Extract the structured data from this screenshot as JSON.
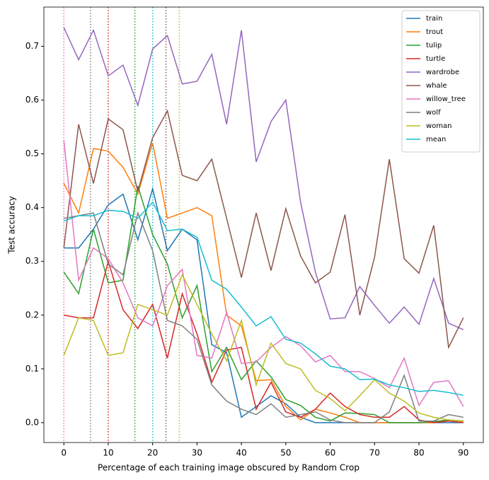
{
  "chart_data": {
    "type": "line",
    "xlabel": "Percentage of each training image obscured by Random Crop",
    "ylabel": "Test accuracy",
    "x": [
      0,
      3.33,
      6.67,
      10,
      13.33,
      16.67,
      20,
      23.33,
      26.67,
      30,
      33.33,
      36.67,
      40,
      43.33,
      46.67,
      50,
      53.33,
      56.67,
      60,
      63.33,
      66.67,
      70,
      73.33,
      76.67,
      80,
      83.33,
      86.67,
      90
    ],
    "xlim": [
      -4.5,
      94.5
    ],
    "xticks": [
      0,
      10,
      20,
      30,
      40,
      50,
      60,
      70,
      80,
      90
    ],
    "ylim": [
      -0.037,
      0.773
    ],
    "yticks": [
      {
        "value": 0,
        "label": "0.0"
      },
      0.1,
      0.2,
      0.3,
      0.4,
      0.5,
      0.6,
      0.7
    ],
    "legend": "upper right",
    "series": [
      {
        "name": "train",
        "color": "#1f77b4",
        "values": [
          0.325,
          0.325,
          0.36,
          0.405,
          0.425,
          0.34,
          0.435,
          0.32,
          0.36,
          0.34,
          0.145,
          0.13,
          0.01,
          0.03,
          0.05,
          0.035,
          0.01,
          0.0,
          0,
          0,
          0,
          0,
          0,
          0,
          0,
          0,
          0,
          0
        ]
      },
      {
        "name": "trout",
        "color": "#ff7f0e",
        "values": [
          0.445,
          0.39,
          0.51,
          0.505,
          0.475,
          0.425,
          0.52,
          0.38,
          0.39,
          0.4,
          0.385,
          0.2,
          0.18,
          0.078,
          0.08,
          0.03,
          0.005,
          0.025,
          0.018,
          0.01,
          0,
          0,
          0,
          0,
          0,
          0,
          0.005,
          0.002
        ]
      },
      {
        "name": "tulip",
        "color": "#2ca02c",
        "values": [
          0.28,
          0.24,
          0.36,
          0.26,
          0.265,
          0.44,
          0.35,
          0.295,
          0.195,
          0.255,
          0.095,
          0.14,
          0.08,
          0.115,
          0.085,
          0.043,
          0.032,
          0.01,
          0.003,
          0.018,
          0.017,
          0.015,
          0,
          0,
          0,
          0.002,
          0.005,
          0.003
        ]
      },
      {
        "name": "turtle",
        "color": "#d62728",
        "values": [
          0.2,
          0.195,
          0.195,
          0.3,
          0.21,
          0.175,
          0.22,
          0.12,
          0.24,
          0.165,
          0.075,
          0.135,
          0.14,
          0.025,
          0.075,
          0.02,
          0.01,
          0.025,
          0.055,
          0.03,
          0.015,
          0.01,
          0.01,
          0.03,
          0.005,
          0,
          0.003,
          0
        ]
      },
      {
        "name": "wardrobe",
        "color": "#9467bd",
        "values": [
          0.735,
          0.675,
          0.73,
          0.645,
          0.665,
          0.59,
          0.695,
          0.72,
          0.63,
          0.635,
          0.685,
          0.555,
          0.73,
          0.485,
          0.56,
          0.6,
          0.41,
          0.28,
          0.193,
          0.195,
          0.253,
          0.218,
          0.185,
          0.215,
          0.183,
          0.268,
          0.185,
          0.173
        ]
      },
      {
        "name": "whale",
        "color": "#8c564b",
        "values": [
          0.325,
          0.555,
          0.445,
          0.565,
          0.545,
          0.43,
          0.53,
          0.58,
          0.46,
          0.45,
          0.49,
          0.38,
          0.27,
          0.39,
          0.283,
          0.398,
          0.31,
          0.26,
          0.28,
          0.387,
          0.2,
          0.308,
          0.49,
          0.305,
          0.278,
          0.367,
          0.14,
          0.195
        ]
      },
      {
        "name": "willow_tree",
        "color": "#e377c2",
        "values": [
          0.525,
          0.265,
          0.325,
          0.305,
          0.26,
          0.195,
          0.18,
          0.255,
          0.285,
          0.125,
          0.12,
          0.205,
          0.11,
          0.113,
          0.14,
          0.16,
          0.143,
          0.113,
          0.125,
          0.095,
          0.095,
          0.082,
          0.065,
          0.12,
          0.032,
          0.075,
          0.078,
          0.03
        ]
      },
      {
        "name": "wolf",
        "color": "#7f7f7f",
        "values": [
          0.38,
          0.385,
          0.39,
          0.295,
          0.275,
          0.39,
          0.32,
          0.19,
          0.18,
          0.155,
          0.07,
          0.04,
          0.025,
          0.015,
          0.035,
          0.01,
          0.015,
          0.02,
          0.005,
          0,
          0,
          0,
          0.02,
          0.088,
          0.003,
          0.003,
          0.015,
          0.01
        ]
      },
      {
        "name": "woman",
        "color": "#bcbd22",
        "values": [
          0.125,
          0.195,
          0.19,
          0.125,
          0.13,
          0.22,
          0.21,
          0.2,
          0.275,
          0.22,
          0.165,
          0.115,
          0.19,
          0.07,
          0.148,
          0.11,
          0.1,
          0.06,
          0.045,
          0.022,
          0.05,
          0.08,
          0.055,
          0.04,
          0.018,
          0.01,
          0.005,
          0.003
        ]
      },
      {
        "name": "mean",
        "color": "#17becf",
        "values": [
          0.375,
          0.385,
          0.385,
          0.395,
          0.393,
          0.38,
          0.41,
          0.357,
          0.36,
          0.345,
          0.265,
          0.248,
          0.215,
          0.18,
          0.197,
          0.155,
          0.148,
          0.128,
          0.105,
          0.1,
          0.08,
          0.081,
          0.07,
          0.065,
          0.058,
          0.06,
          0.056,
          0.051
        ]
      }
    ],
    "vlines": [
      {
        "x": 0,
        "color": "#e377c2"
      },
      {
        "x": 6,
        "color": "#7f7f7f"
      },
      {
        "x": 10,
        "color": "#d62728"
      },
      {
        "x": 16,
        "color": "#2ca02c"
      },
      {
        "x": 20,
        "color": "#17becf"
      },
      {
        "x": 23,
        "color": "#8c564b"
      },
      {
        "x": 26,
        "color": "#bcbd22"
      }
    ]
  }
}
